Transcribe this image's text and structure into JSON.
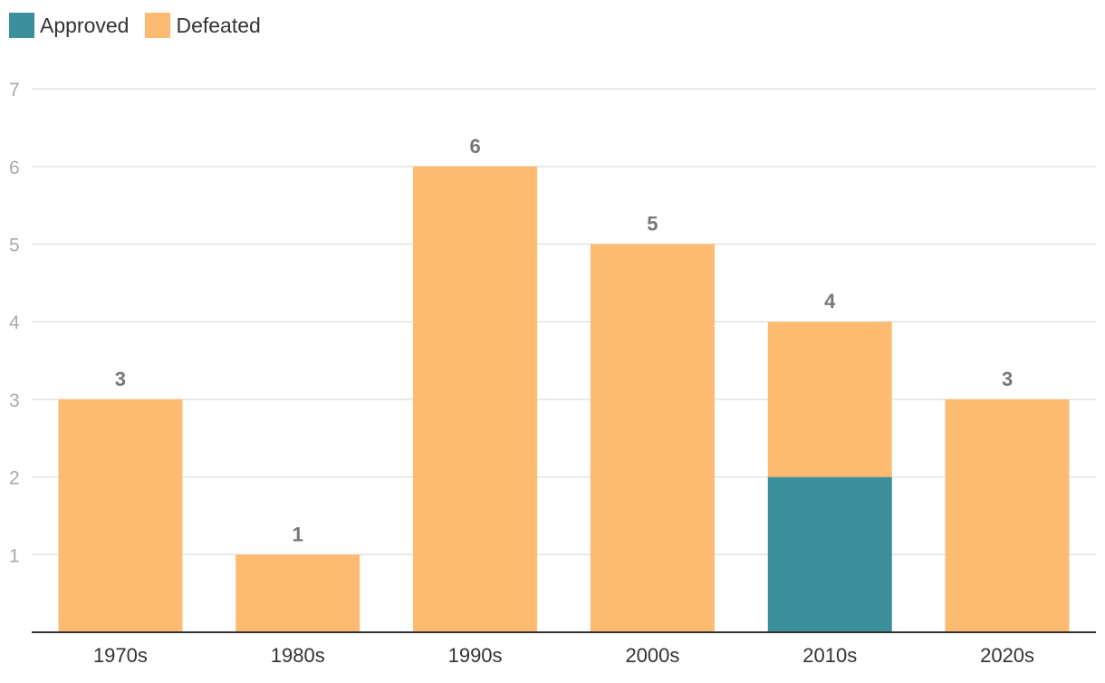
{
  "chart_data": {
    "type": "bar",
    "stacked": true,
    "categories": [
      "1970s",
      "1980s",
      "1990s",
      "2000s",
      "2010s",
      "2020s"
    ],
    "series": [
      {
        "name": "Approved",
        "color": "#3a8f9b",
        "values": [
          0,
          0,
          0,
          0,
          2,
          0
        ]
      },
      {
        "name": "Defeated",
        "color": "#fdba71",
        "values": [
          3,
          1,
          6,
          5,
          2,
          3
        ]
      }
    ],
    "totals": [
      3,
      1,
      6,
      5,
      4,
      3
    ],
    "yticks": [
      1,
      2,
      3,
      4,
      5,
      6,
      7
    ],
    "ylim": [
      0,
      7
    ],
    "title": "",
    "xlabel": "",
    "ylabel": "",
    "legend": "top-left",
    "grid": true
  }
}
